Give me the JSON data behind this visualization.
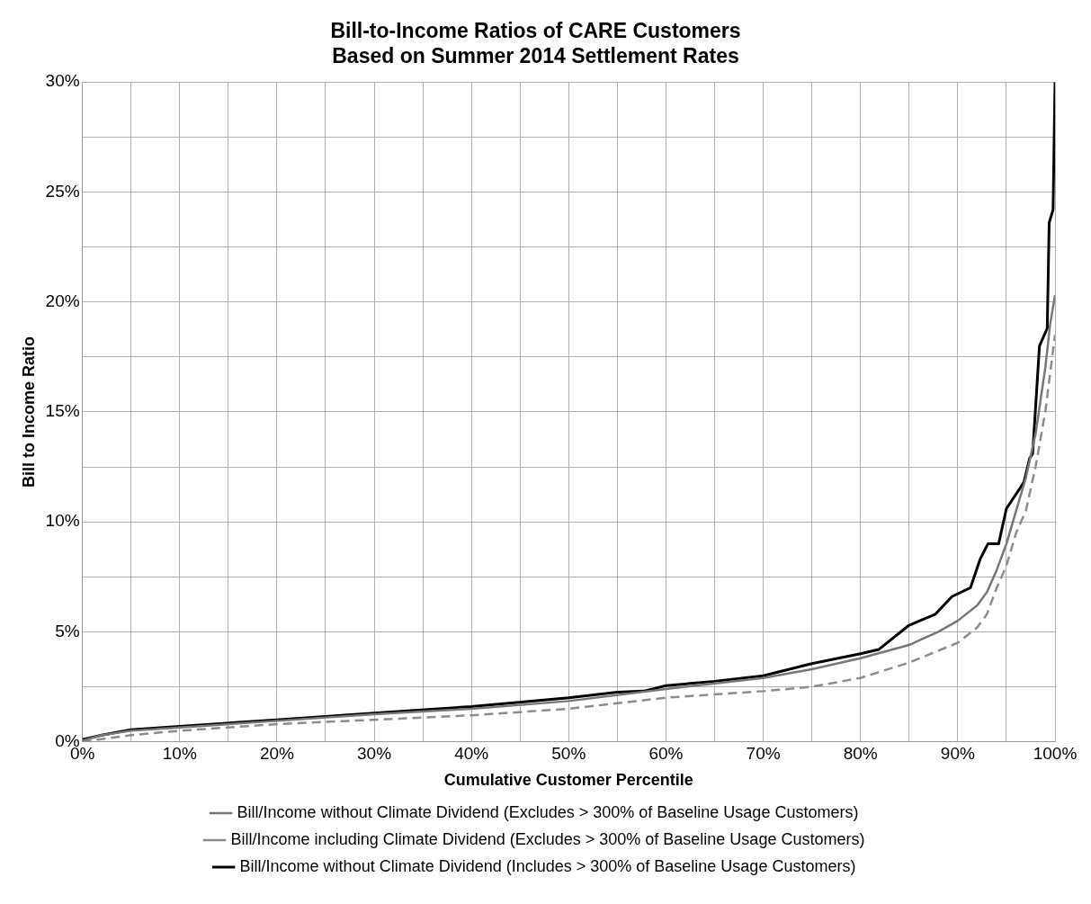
{
  "chart_data": {
    "type": "line",
    "title": "Bill-to-Income Ratios of CARE Customers\nBased on Summer 2014 Settlement Rates",
    "xlabel": "Cumulative Customer Percentile",
    "ylabel": "Bill to Income Ratio",
    "xlim": [
      0,
      100
    ],
    "xticks": [
      {
        "value": 0,
        "label": "0%"
      },
      {
        "value": 5,
        "label": null
      },
      {
        "value": 10,
        "label": "10%"
      },
      {
        "value": 15,
        "label": null
      },
      {
        "value": 20,
        "label": "20%"
      },
      {
        "value": 25,
        "label": null
      },
      {
        "value": 30,
        "label": "30%"
      },
      {
        "value": 35,
        "label": null
      },
      {
        "value": 40,
        "label": "40%"
      },
      {
        "value": 45,
        "label": null
      },
      {
        "value": 50,
        "label": "50%"
      },
      {
        "value": 55,
        "label": null
      },
      {
        "value": 60,
        "label": "60%"
      },
      {
        "value": 65,
        "label": null
      },
      {
        "value": 70,
        "label": "70%"
      },
      {
        "value": 75,
        "label": null
      },
      {
        "value": 80,
        "label": "80%"
      },
      {
        "value": 85,
        "label": null
      },
      {
        "value": 90,
        "label": "90%"
      },
      {
        "value": 95,
        "label": null
      },
      {
        "value": 100,
        "label": "100%"
      }
    ],
    "ylim": [
      0,
      30
    ],
    "yticks": [
      {
        "value": 0,
        "label": "0%"
      },
      {
        "value": 2.5,
        "label": null
      },
      {
        "value": 5,
        "label": "5%"
      },
      {
        "value": 7.5,
        "label": null
      },
      {
        "value": 10,
        "label": "10%"
      },
      {
        "value": 12.5,
        "label": null
      },
      {
        "value": 15,
        "label": "15%"
      },
      {
        "value": 17.5,
        "label": null
      },
      {
        "value": 20,
        "label": "20%"
      },
      {
        "value": 22.5,
        "label": null
      },
      {
        "value": 25,
        "label": "25%"
      },
      {
        "value": 27.5,
        "label": null
      },
      {
        "value": 30,
        "label": "30%"
      }
    ],
    "grid": true,
    "legend": "bottom",
    "marker": "none",
    "series": [
      {
        "name": "Bill/Income without Climate Dividend (Excludes > 300% of Baseline Usage Customers)",
        "color": "#777777",
        "line_style": "solid",
        "x": [
          0,
          2,
          5,
          10,
          20,
          30,
          40,
          50,
          60,
          70,
          75,
          80,
          85,
          88,
          90,
          92,
          93,
          94,
          95,
          96,
          97,
          98,
          99,
          99.5,
          100
        ],
        "values": [
          0.05,
          0.3,
          0.5,
          0.65,
          0.95,
          1.25,
          1.5,
          1.85,
          2.4,
          2.9,
          3.3,
          3.8,
          4.4,
          5.0,
          5.5,
          6.2,
          6.8,
          7.8,
          9.0,
          10.5,
          12.0,
          14.0,
          17.0,
          19.0,
          20.3
        ]
      },
      {
        "name": "Bill/Income including Climate Dividend (Excludes > 300% of Baseline Usage Customers)",
        "color": "#8c8c8c",
        "line_style": "dashed",
        "x": [
          0,
          5,
          10,
          20,
          30,
          40,
          50,
          60,
          70,
          75,
          80,
          85,
          90,
          92,
          93,
          94,
          95,
          96,
          97,
          98,
          99,
          100
        ],
        "values": [
          0,
          0.3,
          0.5,
          0.8,
          1.0,
          1.2,
          1.5,
          2.0,
          2.3,
          2.5,
          2.9,
          3.6,
          4.5,
          5.2,
          5.8,
          7.0,
          8.0,
          9.5,
          10.5,
          12.5,
          15.0,
          18.5
        ]
      },
      {
        "name": "Bill/Income without Climate Dividend (Includes > 300% of Baseline Usage Customers)",
        "color": "#000000",
        "line_style": "solid",
        "x": [
          0,
          2,
          5,
          10,
          20,
          30,
          40,
          50,
          55,
          57.7,
          60,
          65,
          70,
          75,
          80,
          81.9,
          85,
          87.7,
          89.4,
          91.3,
          92.3,
          93.1,
          94.2,
          95,
          96.8,
          97.4,
          97.7,
          98.4,
          99.2,
          99.4,
          99.8,
          100
        ],
        "values": [
          0.1,
          0.3,
          0.55,
          0.7,
          1.0,
          1.3,
          1.6,
          2.0,
          2.25,
          2.3,
          2.55,
          2.75,
          3.0,
          3.55,
          4.0,
          4.2,
          5.3,
          5.8,
          6.6,
          7.0,
          8.3,
          9.0,
          9.0,
          10.6,
          11.8,
          12.9,
          13.1,
          18.0,
          18.8,
          23.6,
          24.2,
          30
        ]
      }
    ]
  }
}
